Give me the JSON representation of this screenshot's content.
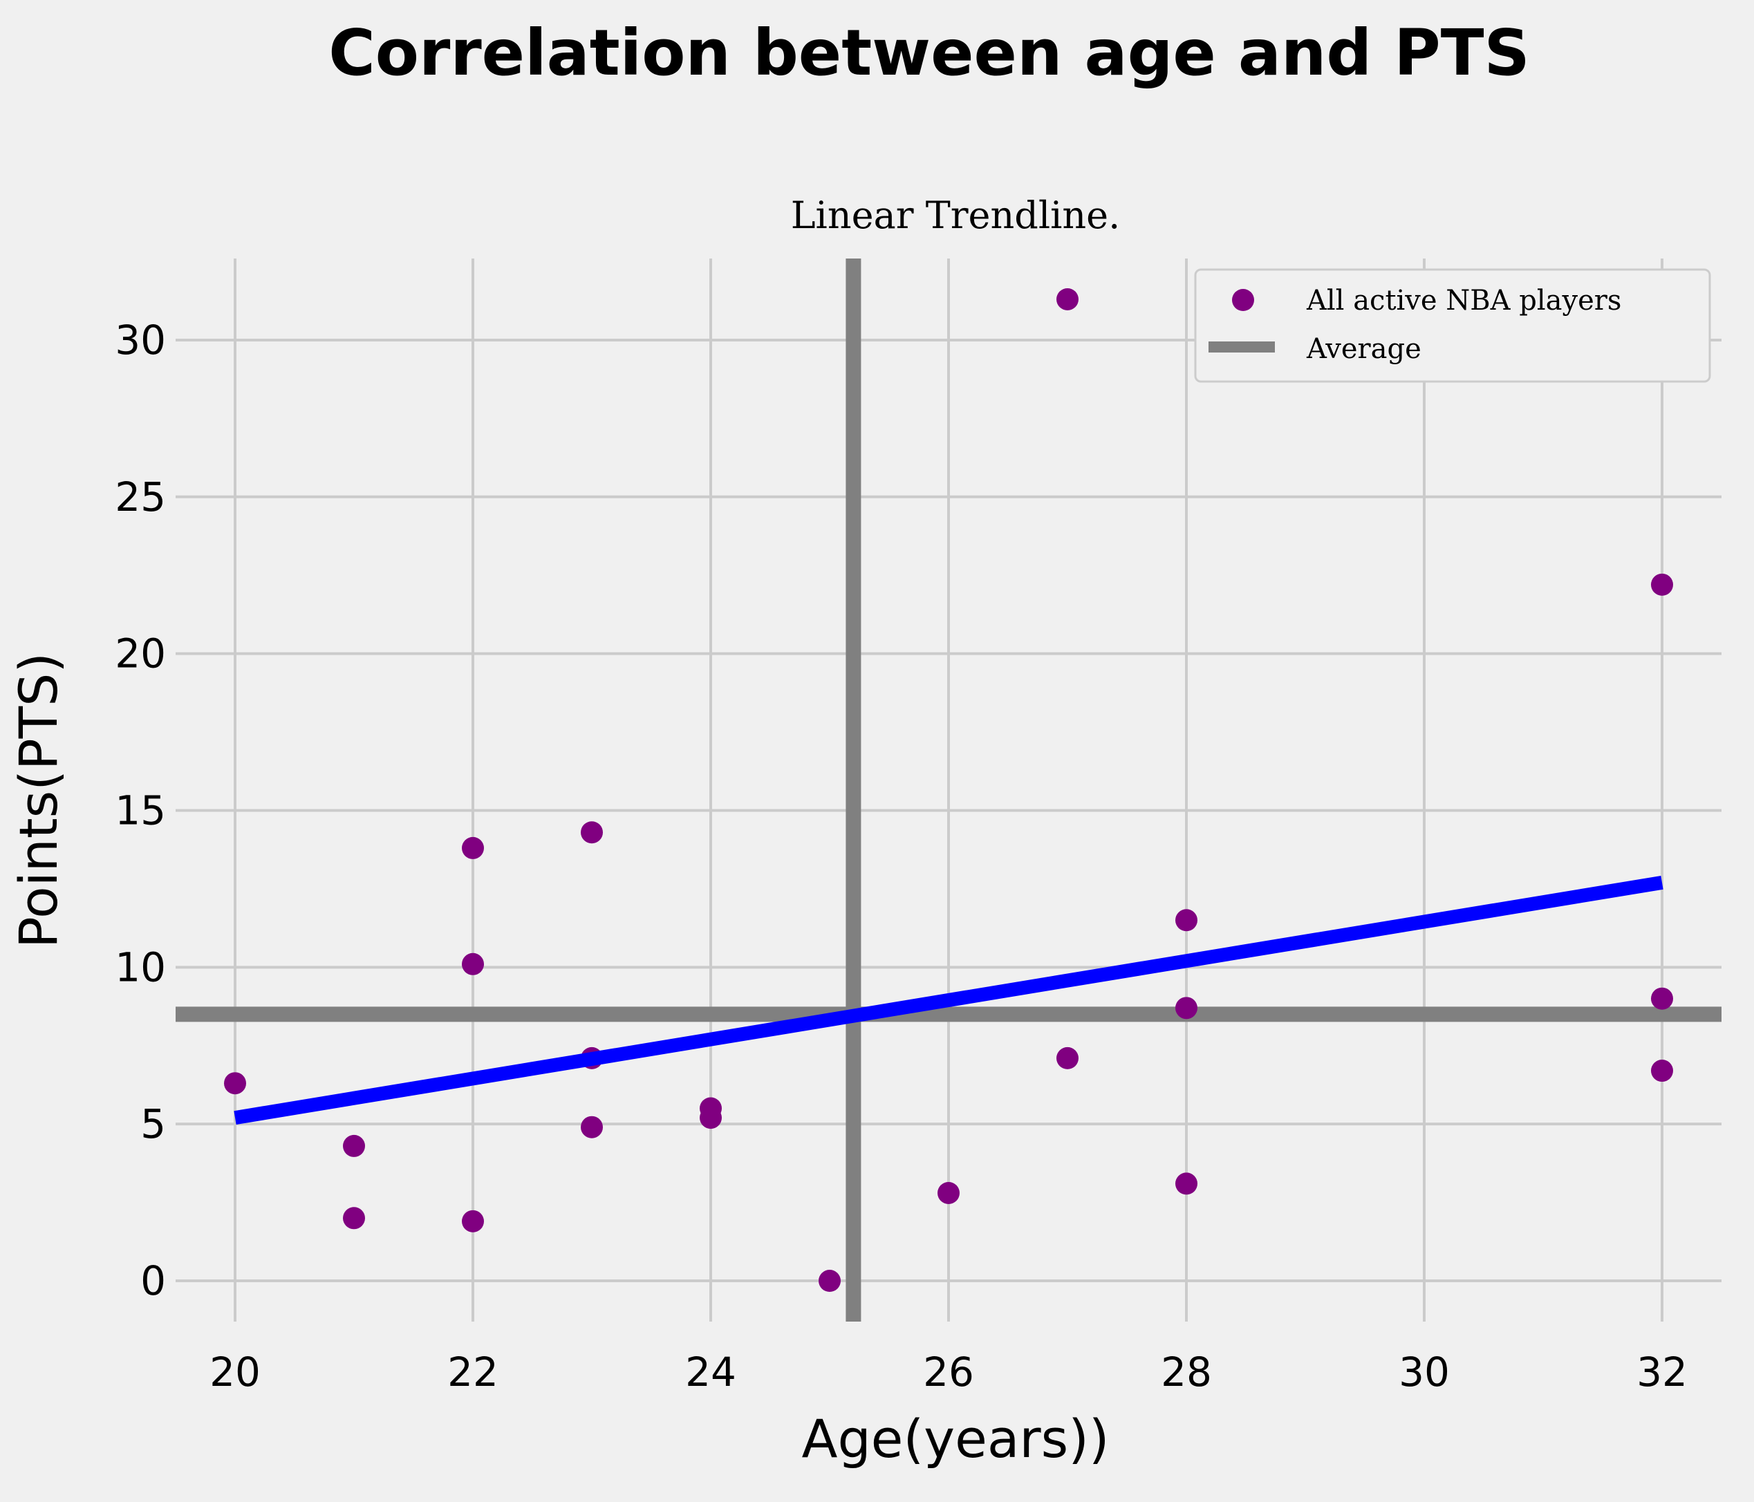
{
  "chart_data": {
    "type": "scatter",
    "title": "Correlation between age and PTS",
    "subtitle": "Linear Trendline.",
    "xlabel": "Age(years))",
    "ylabel": "Points(PTS)",
    "xlim": [
      19.5,
      32.5
    ],
    "ylim": [
      -1.3,
      32.6
    ],
    "xticks": [
      20,
      22,
      24,
      26,
      28,
      30,
      32
    ],
    "yticks": [
      0,
      5,
      10,
      15,
      20,
      25,
      30
    ],
    "grid": true,
    "legend_position": "top-right",
    "series": [
      {
        "name": "All active NBA players",
        "color": "#800080",
        "points": [
          {
            "x": 20,
            "y": 6.3
          },
          {
            "x": 21,
            "y": 4.3
          },
          {
            "x": 21,
            "y": 2.0
          },
          {
            "x": 22,
            "y": 13.8
          },
          {
            "x": 22,
            "y": 10.1
          },
          {
            "x": 22,
            "y": 1.9
          },
          {
            "x": 23,
            "y": 14.3
          },
          {
            "x": 23,
            "y": 7.1
          },
          {
            "x": 23,
            "y": 4.9
          },
          {
            "x": 24,
            "y": 5.5
          },
          {
            "x": 24,
            "y": 5.2
          },
          {
            "x": 25,
            "y": 0.0
          },
          {
            "x": 26,
            "y": 2.8
          },
          {
            "x": 27,
            "y": 31.3
          },
          {
            "x": 27,
            "y": 7.1
          },
          {
            "x": 28,
            "y": 11.5
          },
          {
            "x": 28,
            "y": 8.7
          },
          {
            "x": 28,
            "y": 3.1
          },
          {
            "x": 32,
            "y": 22.2
          },
          {
            "x": 32,
            "y": 9.0
          },
          {
            "x": 32,
            "y": 6.7
          }
        ]
      }
    ],
    "average": {
      "name": "Average",
      "color": "#808080",
      "x": 25.2,
      "y": 8.5
    },
    "trendline": {
      "color": "#0000ff",
      "x": [
        20,
        32
      ],
      "y": [
        5.2,
        12.7
      ]
    }
  }
}
